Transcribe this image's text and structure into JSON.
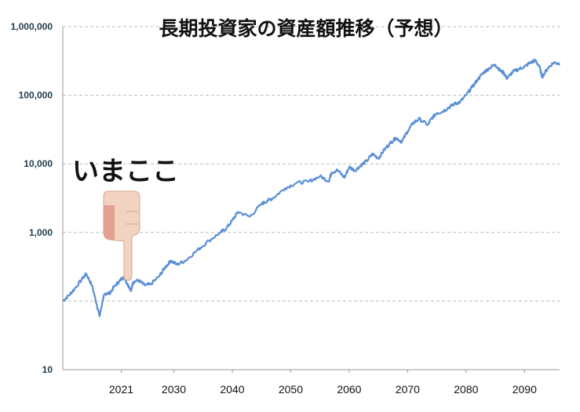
{
  "chart_data": {
    "type": "line",
    "title": "長期投資家の資産額推移（予想）",
    "xlabel": "",
    "ylabel": "",
    "y_scale": "log",
    "ylim": [
      10,
      1000000
    ],
    "xlim": [
      2011,
      2096
    ],
    "grid": true,
    "y_tick_values": [
      10,
      1000,
      10000,
      100000,
      1000000
    ],
    "y_tick_labels": [
      "10",
      "1,000",
      "10,000",
      "100,000",
      "1,000,000"
    ],
    "x_tick_values": [
      2021,
      2030,
      2040,
      2050,
      2060,
      2070,
      2080,
      2090
    ],
    "x_tick_labels": [
      "2021",
      "2030",
      "2040",
      "2050",
      "2060",
      "2070",
      "2080",
      "2090"
    ],
    "annotation": {
      "text": "いまここ",
      "x": 2021.5,
      "y": 200
    },
    "series": [
      {
        "color": "#5b8fd6",
        "x": [
          2011,
          2012,
          2013,
          2014.5,
          2015,
          2016,
          2016.8,
          2017.3,
          2017.9,
          2018.3,
          2019,
          2020,
          2020.8,
          2021.5,
          2022,
          2022.4,
          2022.7,
          2023,
          2024,
          2025,
          2026,
          2027.5,
          2028.5,
          2029.5,
          2030.5,
          2032,
          2034,
          2036,
          2038,
          2039,
          2040,
          2041,
          2043,
          2045,
          2046,
          2047,
          2049,
          2051,
          2053,
          2055,
          2056.5,
          2057,
          2058,
          2059.2,
          2060,
          2061,
          2062,
          2063,
          2064,
          2065,
          2066,
          2067,
          2068,
          2069,
          2070,
          2071,
          2072,
          2073.5,
          2074,
          2075,
          2076,
          2077,
          2078,
          2079,
          2080,
          2081,
          2082,
          2083,
          2084,
          2085,
          2085.8,
          2086.5,
          2087,
          2088,
          2089,
          2090,
          2091,
          2091.8,
          2092.5,
          2093,
          2094,
          2095,
          2096
        ],
        "values": [
          100,
          120,
          150,
          220,
          250,
          170,
          90,
          60,
          110,
          130,
          130,
          170,
          200,
          230,
          180,
          160,
          140,
          190,
          200,
          170,
          175,
          230,
          310,
          390,
          340,
          390,
          550,
          760,
          1000,
          1150,
          1500,
          2000,
          1700,
          2600,
          2900,
          3200,
          4400,
          5300,
          5500,
          6600,
          5600,
          7500,
          8100,
          6300,
          9000,
          8000,
          9500,
          11000,
          14000,
          12000,
          16000,
          20000,
          24000,
          21000,
          30000,
          40000,
          45000,
          37000,
          45000,
          55000,
          58000,
          66000,
          75000,
          80000,
          100000,
          130000,
          170000,
          215000,
          250000,
          280000,
          230000,
          210000,
          175000,
          220000,
          240000,
          260000,
          300000,
          320000,
          270000,
          185000,
          250000,
          300000,
          290000
        ]
      }
    ]
  }
}
